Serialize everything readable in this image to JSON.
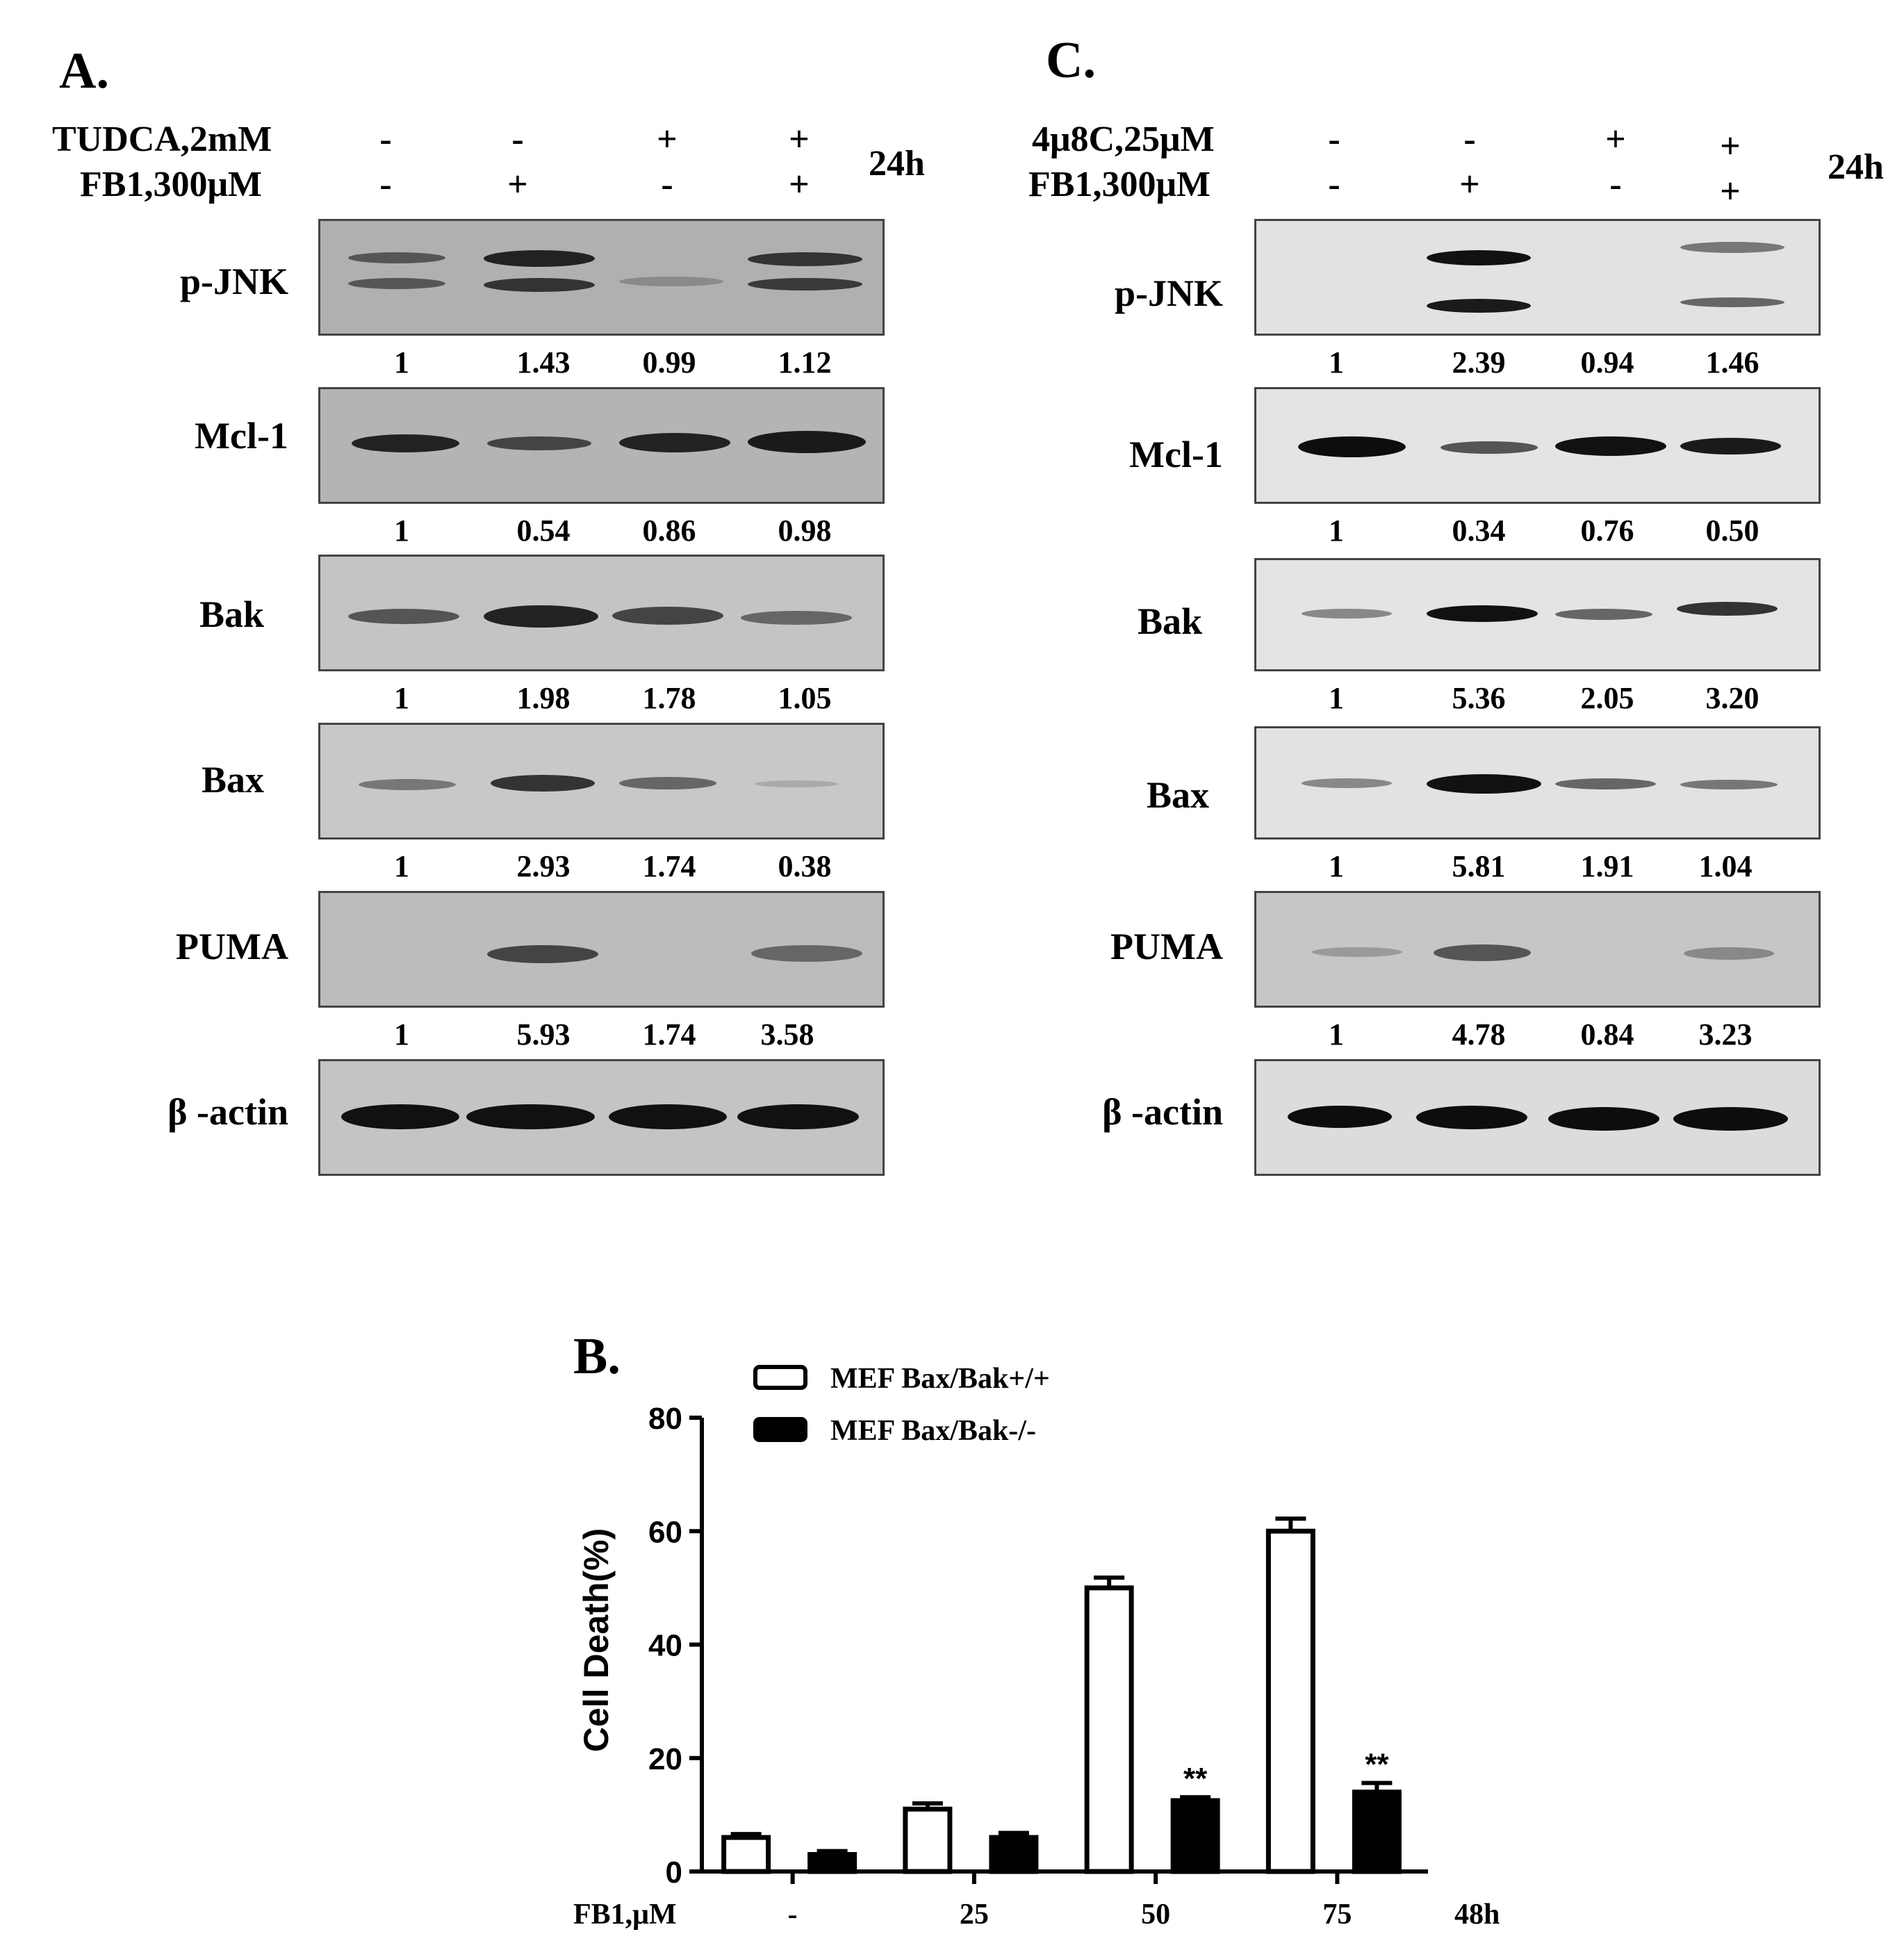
{
  "panels": {
    "A": {
      "label": "A.",
      "treatments": [
        {
          "name": "TUDCA,2mM",
          "signs": [
            "-",
            "-",
            "+",
            "+"
          ]
        },
        {
          "name": "FB1,300μM",
          "signs": [
            "-",
            "+",
            "-",
            "+"
          ]
        }
      ],
      "time": "24h",
      "blots": [
        {
          "protein": "p-JNK",
          "values": [
            "1",
            "1.43",
            "0.99",
            "1.12"
          ]
        },
        {
          "protein": "Mcl-1",
          "values": [
            "1",
            "0.54",
            "0.86",
            "0.98"
          ]
        },
        {
          "protein": "Bak",
          "values": [
            "1",
            "1.98",
            "1.78",
            "1.05"
          ]
        },
        {
          "protein": "Bax",
          "values": [
            "1",
            "2.93",
            "1.74",
            "0.38"
          ]
        },
        {
          "protein": "PUMA",
          "values": [
            "1",
            "5.93",
            "1.74",
            "3.58"
          ]
        },
        {
          "protein": "β -actin",
          "values": []
        }
      ]
    },
    "C": {
      "label": "C.",
      "treatments": [
        {
          "name": "4μ8C,25μM",
          "signs": [
            "-",
            "-",
            "+",
            "+"
          ]
        },
        {
          "name": "FB1,300μM",
          "signs": [
            "-",
            "+",
            "-",
            "+"
          ]
        }
      ],
      "time": "24h",
      "blots": [
        {
          "protein": "p-JNK",
          "values": [
            "1",
            "2.39",
            "0.94",
            "1.46"
          ]
        },
        {
          "protein": "Mcl-1",
          "values": [
            "1",
            "0.34",
            "0.76",
            "0.50"
          ]
        },
        {
          "protein": "Bak",
          "values": [
            "1",
            "5.36",
            "2.05",
            "3.20"
          ]
        },
        {
          "protein": "Bax",
          "values": [
            "1",
            "5.81",
            "1.91",
            "1.04"
          ]
        },
        {
          "protein": "PUMA",
          "values": [
            "1",
            "4.78",
            "0.84",
            "3.23"
          ]
        },
        {
          "protein": "β -actin",
          "values": []
        }
      ]
    },
    "B": {
      "label": "B."
    }
  },
  "chart_data": {
    "type": "bar",
    "title": "",
    "xlabel": "FB1,μM",
    "ylabel": "Cell  Death(%)",
    "time_label": "48h",
    "categories": [
      "-",
      "25",
      "50",
      "75"
    ],
    "ylim": [
      0,
      80
    ],
    "yticks": [
      "0",
      "20",
      "40",
      "60",
      "80"
    ],
    "series": [
      {
        "name": "MEF Bax/Bak+/+",
        "fill": "open",
        "values": [
          6,
          11,
          50,
          60
        ],
        "errors": [
          0.6,
          1.0,
          1.8,
          2.2
        ],
        "annotations": [
          "",
          "",
          "",
          ""
        ]
      },
      {
        "name": "MEF Bax/Bak-/-",
        "fill": "solid",
        "values": [
          3,
          6,
          12.5,
          14
        ],
        "errors": [
          0.6,
          0.8,
          0.6,
          1.6
        ],
        "annotations": [
          "",
          "",
          "**",
          "**"
        ]
      }
    ]
  }
}
